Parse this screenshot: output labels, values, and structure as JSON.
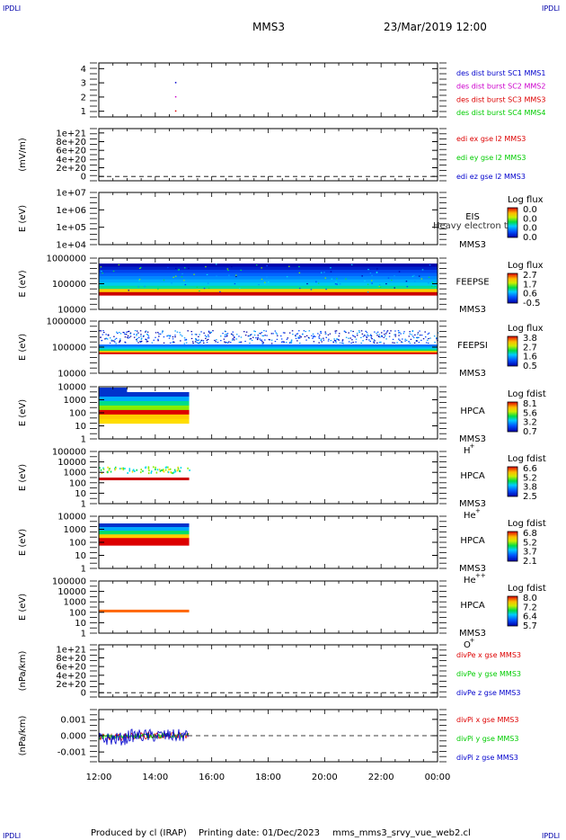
{
  "header": {
    "corner_left": "IPDLI",
    "corner_right": "IPDLI",
    "spacecraft": "MMS3",
    "datetime": "23/Mar/2019 12:00"
  },
  "footer": {
    "corner_left": "IPDLI",
    "corner_right": "IPDLI",
    "produced_by": "Produced by cl (IRAP)",
    "printing_date": "Printing date: 01/Dec/2023",
    "script": "mms_mms3_srvy_vue_web2.cl"
  },
  "colors": {
    "red": "#dd0000",
    "green": "#00cc00",
    "blue": "#0000cc",
    "magenta": "#cc00cc"
  },
  "chart_data": {
    "type": "line",
    "x_axis": {
      "ticks": [
        "12:00",
        "14:00",
        "16:00",
        "18:00",
        "20:00",
        "22:00",
        "00:00"
      ],
      "range_hours": [
        12,
        24
      ]
    },
    "panels": [
      {
        "id": "des-dist",
        "type": "scatter",
        "ylabel": "",
        "yticks": [
          "1",
          "2",
          "3",
          "4"
        ],
        "ylim": [
          0.6,
          4.4
        ],
        "points": [
          {
            "x": 14.7,
            "y": 3
          },
          {
            "x": 14.7,
            "y": 2
          },
          {
            "x": 14.7,
            "y": 1
          }
        ],
        "legend": [
          {
            "text": "des dist burst SC1 MMS1",
            "color": "#0000cc"
          },
          {
            "text": "des dist burst SC2 MMS2",
            "color": "#cc00cc"
          },
          {
            "text": "des dist burst SC3 MMS3",
            "color": "#dd0000"
          },
          {
            "text": "des dist burst SC4 MMS4",
            "color": "#00cc00"
          }
        ]
      },
      {
        "id": "edi-e",
        "type": "line",
        "ylabel": "(mV/m)",
        "yticks": [
          "0",
          "2e+20",
          "4e+20",
          "6e+20",
          "8e+20",
          "1e+21"
        ],
        "ylim": [
          -1e+20,
          1.1e+21
        ],
        "zero_line": true,
        "legend": [
          {
            "text": "edi ex gse l2 MMS3",
            "color": "#dd0000"
          },
          {
            "text": "edi ey gse l2 MMS3",
            "color": "#00cc00"
          },
          {
            "text": "edi ez gse l2 MMS3",
            "color": "#0000cc"
          }
        ]
      },
      {
        "id": "eis",
        "type": "heatmap",
        "ylabel": "E (eV)",
        "yticks": [
          "1e+04",
          "1e+05",
          "1e+06",
          "1e+07"
        ],
        "instrument": "EIS",
        "sc": "MMS3",
        "overlay_text": "Heavy electron tof",
        "colorbar": {
          "title": "Log flux",
          "ticks": [
            "0.0",
            "0.0",
            "0.0",
            "0.0"
          ]
        }
      },
      {
        "id": "feepse",
        "type": "heatmap",
        "ylabel": "E (eV)",
        "yticks": [
          "10000",
          "100000",
          "1000000"
        ],
        "instrument": "FEEPSE",
        "sc": "MMS3",
        "x_extent": [
          12,
          24
        ],
        "colorbar": {
          "title": "Log flux",
          "ticks": [
            "2.7",
            "1.7",
            "0.6",
            "-0.5"
          ]
        }
      },
      {
        "id": "feepsi",
        "type": "heatmap",
        "ylabel": "E (eV)",
        "yticks": [
          "10000",
          "100000",
          "1000000"
        ],
        "instrument": "FEEPSI",
        "sc": "MMS3",
        "x_extent": [
          12,
          24
        ],
        "colorbar": {
          "title": "Log flux",
          "ticks": [
            "3.8",
            "2.7",
            "1.6",
            "0.5"
          ]
        }
      },
      {
        "id": "hpca-h",
        "type": "heatmap",
        "ylabel": "E (eV)",
        "yticks": [
          "1",
          "10",
          "100",
          "1000",
          "10000"
        ],
        "instrument": "HPCA",
        "sc": "MMS3",
        "species": "H",
        "species_sup": "+",
        "x_extent": [
          12,
          15.2
        ],
        "colorbar": {
          "title": "Log fdist",
          "ticks": [
            "8.1",
            "5.6",
            "3.2",
            "0.7"
          ]
        }
      },
      {
        "id": "hpca-he",
        "type": "heatmap",
        "ylabel": "E (eV)",
        "yticks": [
          "1",
          "10",
          "100",
          "1000",
          "10000",
          "100000"
        ],
        "instrument": "HPCA",
        "sc": "MMS3",
        "species": "He",
        "species_sup": "+",
        "x_extent": [
          12,
          15.2
        ],
        "colorbar": {
          "title": "Log fdist",
          "ticks": [
            "6.6",
            "5.2",
            "3.8",
            "2.5"
          ]
        }
      },
      {
        "id": "hpca-he2",
        "type": "heatmap",
        "ylabel": "E (eV)",
        "yticks": [
          "1",
          "10",
          "100",
          "1000",
          "10000"
        ],
        "instrument": "HPCA",
        "sc": "MMS3",
        "species": "He",
        "species_sup": "++",
        "x_extent": [
          12,
          15.2
        ],
        "colorbar": {
          "title": "Log fdist",
          "ticks": [
            "6.8",
            "5.2",
            "3.7",
            "2.1"
          ]
        }
      },
      {
        "id": "hpca-o",
        "type": "heatmap",
        "ylabel": "E (eV)",
        "yticks": [
          "1",
          "10",
          "100",
          "1000",
          "10000",
          "100000"
        ],
        "instrument": "HPCA",
        "sc": "MMS3",
        "species": "O",
        "species_sup": "+",
        "x_extent": [
          12,
          15.2
        ],
        "colorbar": {
          "title": "Log fdist",
          "ticks": [
            "8.0",
            "7.2",
            "6.4",
            "5.7"
          ]
        }
      },
      {
        "id": "divpe",
        "type": "line",
        "ylabel": "(nPa/km)",
        "yticks": [
          "0",
          "2e+20",
          "4e+20",
          "6e+20",
          "8e+20",
          "1e+21"
        ],
        "ylim": [
          -1e+20,
          1.1e+21
        ],
        "zero_line": true,
        "legend": [
          {
            "text": "divPe x gse MMS3",
            "color": "#dd0000"
          },
          {
            "text": "divPe y gse MMS3",
            "color": "#00cc00"
          },
          {
            "text": "divPe z gse MMS3",
            "color": "#0000cc"
          }
        ]
      },
      {
        "id": "divpi",
        "type": "line",
        "ylabel": "(nPa/km)",
        "yticks": [
          "-0.001",
          "0.000",
          "0.001"
        ],
        "ylim": [
          -0.0016,
          0.0016
        ],
        "zero_line": true,
        "x_extent": [
          12.0,
          15.2
        ],
        "legend": [
          {
            "text": "divPi x gse MMS3",
            "color": "#dd0000"
          },
          {
            "text": "divPi y gse MMS3",
            "color": "#00cc00"
          },
          {
            "text": "divPi z gse MMS3",
            "color": "#0000cc"
          }
        ]
      }
    ]
  }
}
